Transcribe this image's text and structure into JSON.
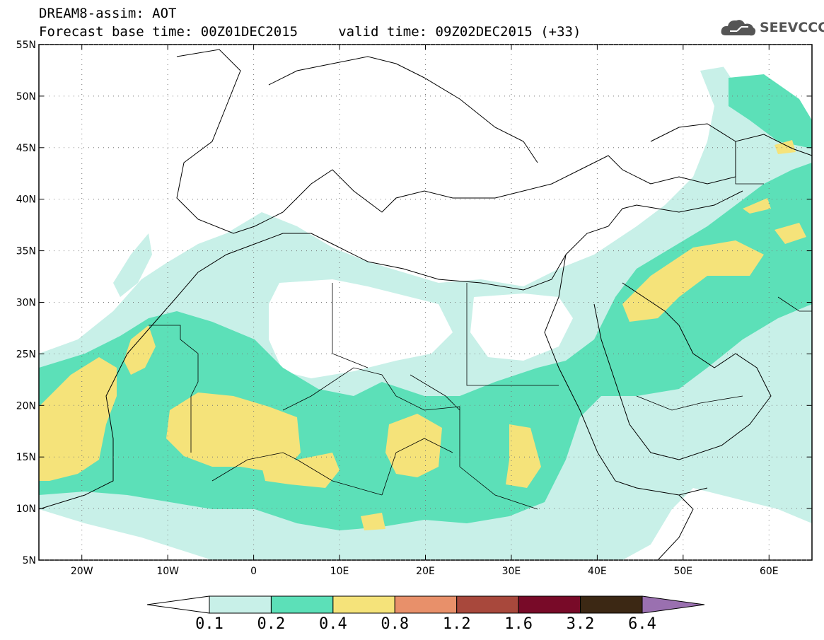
{
  "header": {
    "line1": "DREAM8-assim: AOT",
    "line2": "Forecast base time: 00Z01DEC2015     valid time: 09Z02DEC2015 (+33)"
  },
  "logo": {
    "text": "SEEVCCC",
    "icon": "cloud-logo-icon"
  },
  "map": {
    "x_ticks": [
      {
        "lon": -20,
        "label": "20W"
      },
      {
        "lon": -10,
        "label": "10W"
      },
      {
        "lon": 0,
        "label": "0"
      },
      {
        "lon": 10,
        "label": "10E"
      },
      {
        "lon": 20,
        "label": "20E"
      },
      {
        "lon": 30,
        "label": "30E"
      },
      {
        "lon": 40,
        "label": "40E"
      },
      {
        "lon": 50,
        "label": "50E"
      },
      {
        "lon": 60,
        "label": "60E"
      }
    ],
    "y_ticks": [
      {
        "lat": 55,
        "label": "55N"
      },
      {
        "lat": 50,
        "label": "50N"
      },
      {
        "lat": 45,
        "label": "45N"
      },
      {
        "lat": 40,
        "label": "40N"
      },
      {
        "lat": 35,
        "label": "35N"
      },
      {
        "lat": 30,
        "label": "30N"
      },
      {
        "lat": 25,
        "label": "25N"
      },
      {
        "lat": 20,
        "label": "20N"
      },
      {
        "lat": 15,
        "label": "15N"
      },
      {
        "lat": 10,
        "label": "10N"
      },
      {
        "lat": 5,
        "label": "5N"
      }
    ],
    "lon_range": [
      -25,
      65
    ],
    "lat_range": [
      5,
      55
    ],
    "colors": {
      "aot_0_1": "#c8f0e8",
      "aot_0_2": "#5ce0b8",
      "aot_0_4": "#f5e37a"
    }
  },
  "colorbar": {
    "colors": [
      "#ffffff",
      "#c8f0e8",
      "#5ce0b8",
      "#f5e37a",
      "#e8906a",
      "#a8483c",
      "#780a28",
      "#3c2814",
      "#9a70b0"
    ],
    "labels": [
      "0.1",
      "0.2",
      "0.4",
      "0.8",
      "1.2",
      "1.6",
      "3.2",
      "6.4"
    ]
  }
}
